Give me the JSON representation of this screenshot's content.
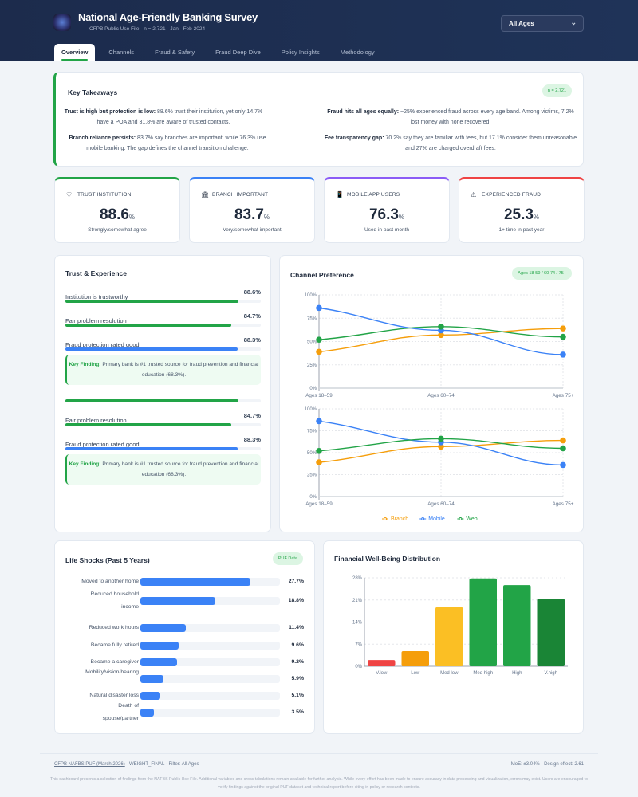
{
  "header": {
    "title": "National Age-Friendly Banking Survey",
    "subtitle": "CFPB Public Use File · n = 2,721 · Jan - Feb 2024",
    "age_filter": "All Ages"
  },
  "tabs": [
    {
      "label": "Overview",
      "active": true
    },
    {
      "label": "Channels"
    },
    {
      "label": "Fraud & Safety"
    },
    {
      "label": "Fraud Deep Dive"
    },
    {
      "label": "Policy Insights"
    },
    {
      "label": "Methodology"
    }
  ],
  "takeaways": {
    "title": "Key Takeaways",
    "badge": "n = 2,721",
    "items": [
      {
        "head": "Trust is high but protection is low:",
        "text": " 88.6% trust their institution, yet only 14.7% have a POA and 31.8% are aware of trusted contacts."
      },
      {
        "head": "Fraud hits all ages equally:",
        "text": " ~25% experienced fraud across every age band. Among victims, 7.2% lost money with none recovered."
      },
      {
        "head": "Branch reliance persists:",
        "text": " 83.7% say branches are important, while 76.3% use mobile banking. The gap defines the channel transition challenge."
      },
      {
        "head": "Fee transparency gap:",
        "text": " 70.2% say they are familiar with fees, but 17.1% consider them unreasonable and 27% are charged overdraft fees."
      }
    ]
  },
  "kpis": [
    {
      "label": "TRUST INSTITUTION",
      "value": "88.6",
      "unit": "%",
      "sub": "Strongly/somewhat agree",
      "icon": "shield-icon",
      "color": "#22a447",
      "glyph": "♡"
    },
    {
      "label": "BRANCH IMPORTANT",
      "value": "83.7",
      "unit": "%",
      "sub": "Very/somewhat important",
      "icon": "bank-icon",
      "color": "#3b82f6",
      "glyph": "🏛"
    },
    {
      "label": "MOBILE APP USERS",
      "value": "76.3",
      "unit": "%",
      "sub": "Used in past month",
      "icon": "mobile-icon",
      "color": "#8b5cf6",
      "glyph": "📱"
    },
    {
      "label": "EXPERIENCED FRAUD",
      "value": "25.3",
      "unit": "%",
      "sub": "1+ time in past year",
      "icon": "warning-icon",
      "color": "#ef4444",
      "glyph": "⚠"
    }
  ],
  "trust": {
    "title": "Trust & Experience",
    "rows": [
      {
        "label": "Institution is trustworthy",
        "value": "88.6%",
        "pct": 88.6,
        "color": "#22a447"
      },
      {
        "label": "Fair problem resolution",
        "value": "84.7%",
        "pct": 84.7,
        "color": "#22a447"
      },
      {
        "label": "Fraud protection rated good",
        "value": "88.3%",
        "pct": 88.3,
        "color": "#3b82f6"
      }
    ],
    "finding_label": "Key Finding:",
    "finding_text": " Primary bank is #1 trusted source for fraud prevention and financial education (68.3%)."
  },
  "chart_data": [
    {
      "type": "line",
      "title": "Channel Preference",
      "badge": "Ages 18-59 / 60-74 / 75+",
      "categories": [
        "Ages 18–59",
        "Ages 60–74",
        "Ages 75+"
      ],
      "ylim": [
        0,
        100
      ],
      "yticks": [
        "0%",
        "25%",
        "50%",
        "75%",
        "100%"
      ],
      "grid": true,
      "legend": "bottom",
      "series": [
        {
          "name": "Branch",
          "color": "#f59e0b",
          "values": [
            39,
            57,
            64
          ]
        },
        {
          "name": "Mobile",
          "color": "#3b82f6",
          "values": [
            86,
            62,
            36
          ]
        },
        {
          "name": "Web",
          "color": "#22a447",
          "values": [
            52,
            66,
            55
          ]
        }
      ]
    },
    {
      "type": "bar",
      "title": "Life Shocks (Past 5 Years)",
      "badge": "PUF Data",
      "categories": [
        "Moved to another home",
        "Reduced household income",
        "Reduced work hours",
        "Became fully retired",
        "Became a caregiver",
        "Mobility/vision/hearing",
        "Natural disaster loss",
        "Death of spouse/partner"
      ],
      "values": [
        27.7,
        18.8,
        11.4,
        9.6,
        9.2,
        5.9,
        5.1,
        3.5
      ],
      "labels": [
        "27.7%",
        "18.8%",
        "11.4%",
        "9.6%",
        "9.2%",
        "5.9%",
        "5.1%",
        "3.5%"
      ],
      "color": "#3b82f6"
    },
    {
      "type": "bar",
      "title": "Financial Well-Being Distribution",
      "categories": [
        "V.low",
        "Low",
        "Med low",
        "Med high",
        "High",
        "V.high"
      ],
      "values": [
        2.0,
        4.8,
        18.7,
        27.8,
        25.7,
        21.4
      ],
      "colors": [
        "#ef4444",
        "#f59e0b",
        "#fbbf24",
        "#22a447",
        "#22a447",
        "#1a8536"
      ],
      "ylim": [
        0,
        28
      ],
      "yticks": [
        "0%",
        "7%",
        "14%",
        "21%",
        "28%"
      ],
      "grid": true
    }
  ],
  "footer": {
    "source": "CFPB NAFBS PUF (March 2026)",
    "meta": " · WEIGHT_FINAL · Filter: All Ages",
    "moe": "MoE: ±3.04% · Design effect: 2.61",
    "disclaimer": "This dashboard presents a selection of findings from the NAFBS Public Use File. Additional variables and cross-tabulations remain available for further analysis. While every effort has been made to ensure accuracy in data processing and visualization, errors may exist. Users are encouraged to verify findings against the original PUF dataset and technical report before citing in policy or research contexts."
  }
}
